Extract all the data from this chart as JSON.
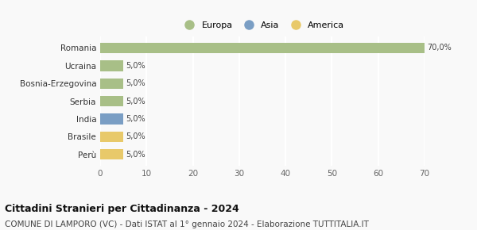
{
  "categories": [
    "Perù",
    "Brasile",
    "India",
    "Serbia",
    "Bosnia-Erzegovina",
    "Ucraina",
    "Romania"
  ],
  "values": [
    5.0,
    5.0,
    5.0,
    5.0,
    5.0,
    5.0,
    70.0
  ],
  "colors": [
    "#e8c96a",
    "#e8c96a",
    "#7a9ec4",
    "#a8bf87",
    "#a8bf87",
    "#a8bf87",
    "#a8bf87"
  ],
  "labels": [
    "5,0%",
    "5,0%",
    "5,0%",
    "5,0%",
    "5,0%",
    "5,0%",
    "70,0%"
  ],
  "legend_labels": [
    "Europa",
    "Asia",
    "America"
  ],
  "legend_colors": [
    "#a8bf87",
    "#7a9ec4",
    "#e8c96a"
  ],
  "xlim": [
    0,
    70
  ],
  "xticks": [
    0,
    10,
    20,
    30,
    40,
    50,
    60,
    70
  ],
  "title": "Cittadini Stranieri per Cittadinanza - 2024",
  "subtitle": "COMUNE DI LAMPORO (VC) - Dati ISTAT al 1° gennaio 2024 - Elaborazione TUTTITALIA.IT",
  "title_fontsize": 9,
  "subtitle_fontsize": 7.5,
  "background_color": "#f9f9f9",
  "grid_color": "#ffffff",
  "bar_height": 0.6
}
